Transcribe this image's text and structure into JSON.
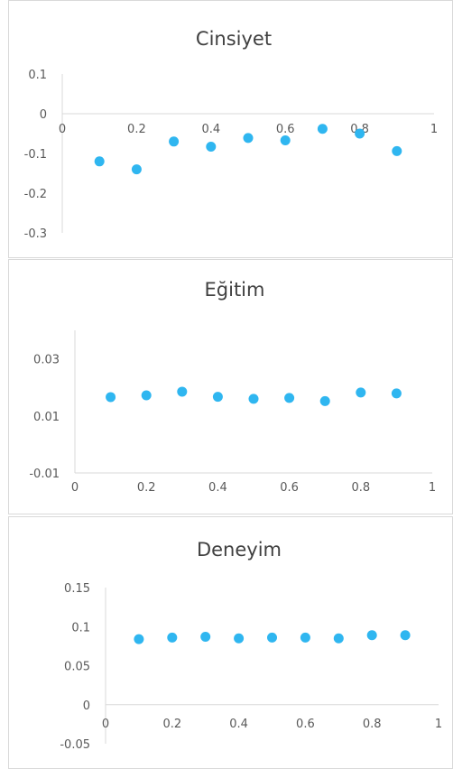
{
  "chart_data": [
    {
      "type": "scatter",
      "title": "Cinsiyet",
      "xlim": [
        0,
        1
      ],
      "ylim": [
        -0.3,
        0.1
      ],
      "x_ticks": [
        "0",
        "0.2",
        "0.4",
        "0.6",
        "0.8",
        "1"
      ],
      "y_ticks": [
        "0.1",
        "0",
        "-0.1",
        "-0.2",
        "-0.3"
      ],
      "marker_color": "#2fb6f0",
      "x": [
        0.1,
        0.2,
        0.3,
        0.4,
        0.5,
        0.6,
        0.7,
        0.8,
        0.9
      ],
      "y": [
        -0.12,
        -0.14,
        -0.07,
        -0.083,
        -0.061,
        -0.067,
        -0.038,
        -0.05,
        -0.094
      ]
    },
    {
      "type": "scatter",
      "title": "Eğitim",
      "xlim": [
        0,
        1
      ],
      "ylim": [
        -0.01,
        0.04
      ],
      "x_ticks": [
        "0",
        "0.2",
        "0.4",
        "0.6",
        "0.8",
        "1"
      ],
      "y_ticks": [
        "0.03",
        "0.01",
        "-0.01"
      ],
      "marker_color": "#2fb6f0",
      "x": [
        0.1,
        0.2,
        0.3,
        0.4,
        0.5,
        0.6,
        0.7,
        0.8,
        0.9
      ],
      "y": [
        0.0166,
        0.0172,
        0.0185,
        0.0167,
        0.016,
        0.0163,
        0.0152,
        0.0182,
        0.0179
      ]
    },
    {
      "type": "scatter",
      "title": "Deneyim",
      "xlim": [
        0,
        1
      ],
      "ylim": [
        -0.05,
        0.15
      ],
      "x_ticks": [
        "0",
        "0.2",
        "0.4",
        "0.6",
        "0.8",
        "1"
      ],
      "y_ticks": [
        "0.15",
        "0.1",
        "0.05",
        "0",
        "-0.05"
      ],
      "marker_color": "#2fb6f0",
      "x": [
        0.1,
        0.2,
        0.3,
        0.4,
        0.5,
        0.6,
        0.7,
        0.8,
        0.9
      ],
      "y": [
        0.084,
        0.086,
        0.087,
        0.085,
        0.086,
        0.086,
        0.085,
        0.089,
        0.089
      ]
    }
  ]
}
